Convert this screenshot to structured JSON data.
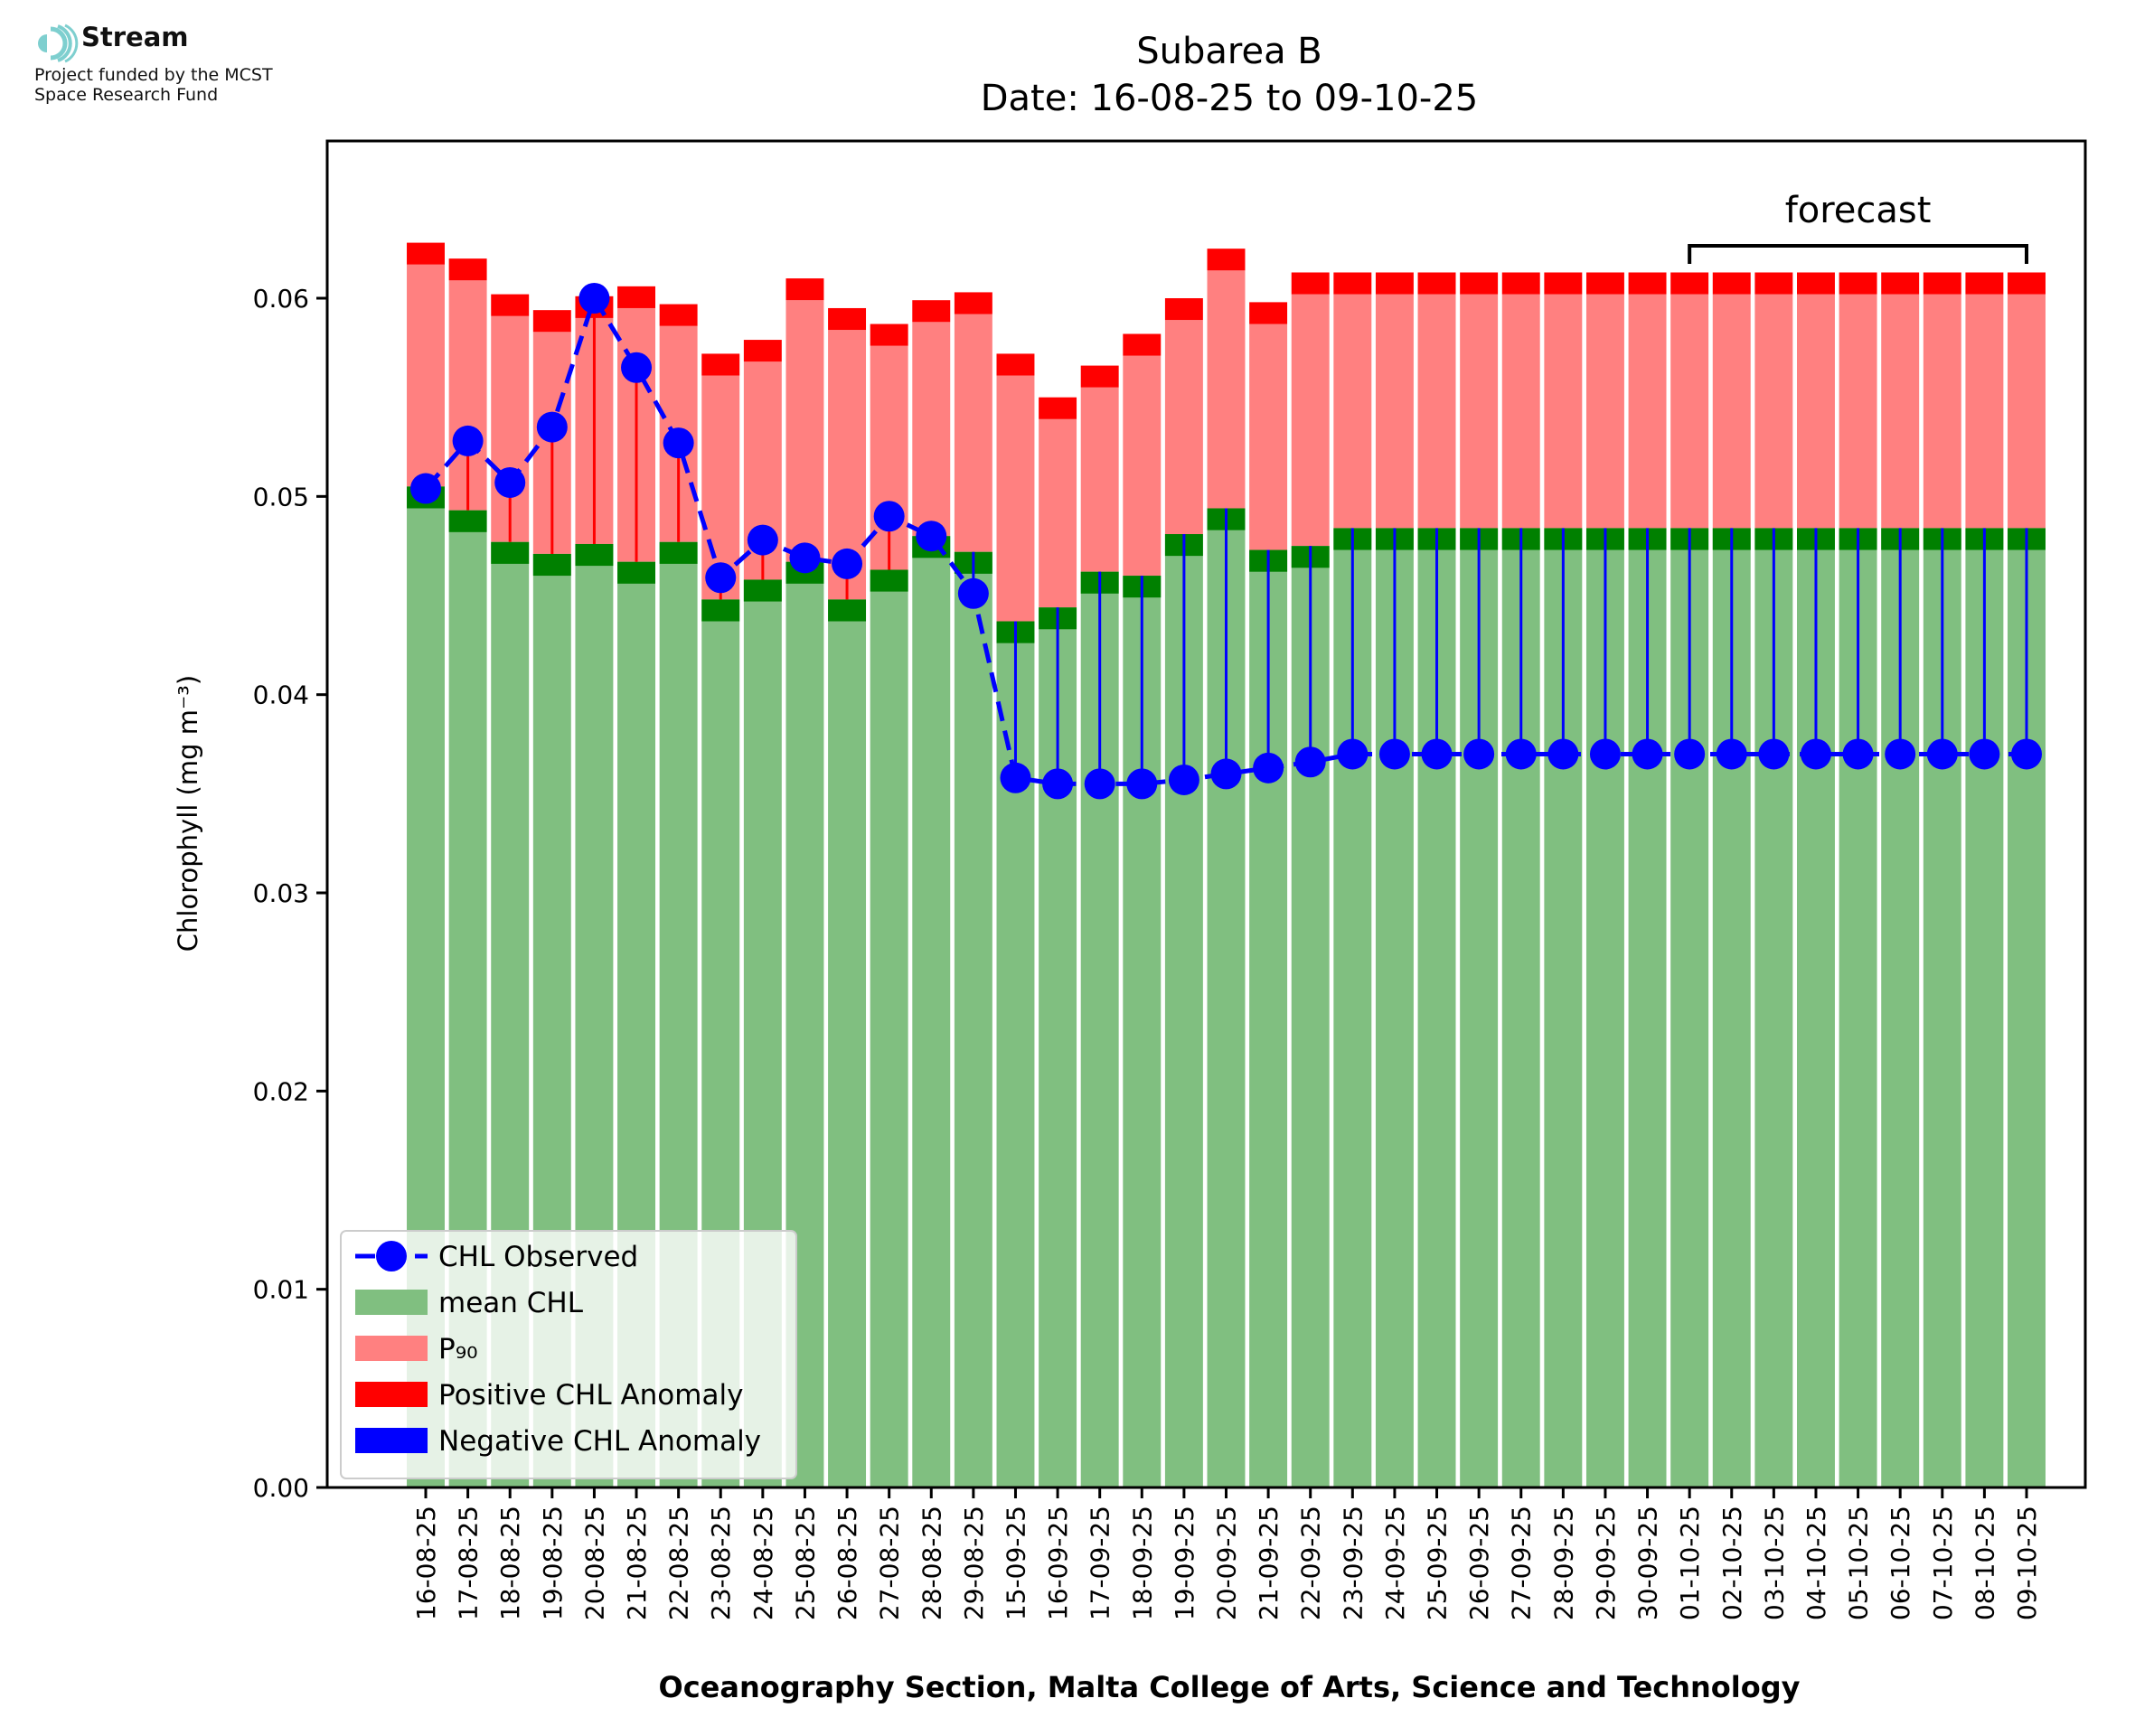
{
  "branding": {
    "name": "Stream",
    "subtitle_line1": "Project funded by the MCST",
    "subtitle_line2": "Space Research Fund"
  },
  "chart_data": {
    "type": "bar",
    "title": "Subarea B",
    "subtitle": "Date: 16-08-25 to 09-10-25",
    "xlabel": "Oceanography Section, Malta College of Arts, Science and Technology",
    "ylabel": "Chlorophyll (mg m⁻³)",
    "ylim": [
      0,
      0.068
    ],
    "yticks": [
      "0.00",
      "0.01",
      "0.02",
      "0.03",
      "0.04",
      "0.05",
      "0.06"
    ],
    "grid": false,
    "legend_position": "lower-left",
    "annotation": "forecast",
    "forecast_range": [
      "01-10-25",
      "09-10-25"
    ],
    "categories": [
      "16-08-25",
      "17-08-25",
      "18-08-25",
      "19-08-25",
      "20-08-25",
      "21-08-25",
      "22-08-25",
      "23-08-25",
      "24-08-25",
      "25-08-25",
      "26-08-25",
      "27-08-25",
      "28-08-25",
      "29-08-25",
      "15-09-25",
      "16-09-25",
      "17-09-25",
      "18-09-25",
      "19-09-25",
      "20-09-25",
      "21-09-25",
      "22-09-25",
      "23-09-25",
      "24-09-25",
      "25-09-25",
      "26-09-25",
      "27-09-25",
      "28-09-25",
      "29-09-25",
      "30-09-25",
      "01-10-25",
      "02-10-25",
      "03-10-25",
      "04-10-25",
      "05-10-25",
      "06-10-25",
      "07-10-25",
      "08-10-25",
      "09-10-25"
    ],
    "series": [
      {
        "name": "CHL Observed",
        "color": "#0000ff",
        "style": "dashed-line-markers",
        "values": [
          0.0504,
          0.0528,
          0.0507,
          0.0535,
          0.06,
          0.0565,
          0.0527,
          0.0459,
          0.0478,
          0.0469,
          0.0466,
          0.049,
          0.048,
          0.0451,
          0.0358,
          0.0355,
          0.0355,
          0.0355,
          0.0357,
          0.036,
          0.0363,
          0.0366,
          0.037,
          0.037,
          0.037,
          0.037,
          0.037,
          0.037,
          0.037,
          0.037,
          0.037,
          0.037,
          0.037,
          0.037,
          0.037,
          0.037,
          0.037,
          0.037,
          0.037
        ]
      },
      {
        "name": "mean CHL",
        "color": "#80bf80",
        "values": [
          0.0505,
          0.0493,
          0.0477,
          0.0471,
          0.0476,
          0.0467,
          0.0477,
          0.0448,
          0.0458,
          0.0467,
          0.0448,
          0.0463,
          0.048,
          0.0472,
          0.0437,
          0.0444,
          0.0462,
          0.046,
          0.0481,
          0.0494,
          0.0473,
          0.0475,
          0.0484,
          0.0484,
          0.0484,
          0.0484,
          0.0484,
          0.0484,
          0.0484,
          0.0484,
          0.0484,
          0.0484,
          0.0484,
          0.0484,
          0.0484,
          0.0484,
          0.0484,
          0.0484,
          0.0484
        ]
      },
      {
        "name": "P₉₀",
        "color": "#ff8080",
        "values": [
          0.0617,
          0.0609,
          0.0591,
          0.0583,
          0.059,
          0.0595,
          0.0586,
          0.0561,
          0.0568,
          0.0599,
          0.0584,
          0.0576,
          0.0588,
          0.0592,
          0.0561,
          0.0539,
          0.0555,
          0.0571,
          0.0589,
          0.0614,
          0.0587,
          0.0602,
          0.0602,
          0.0602,
          0.0602,
          0.0602,
          0.0602,
          0.0602,
          0.0602,
          0.0602,
          0.0602,
          0.0602,
          0.0602,
          0.0602,
          0.0602,
          0.0602,
          0.0602,
          0.0602,
          0.0602
        ]
      },
      {
        "name": "Positive CHL Anomaly",
        "color": "#ff0000"
      },
      {
        "name": "Negative CHL Anomaly",
        "color": "#0000ff"
      }
    ]
  }
}
